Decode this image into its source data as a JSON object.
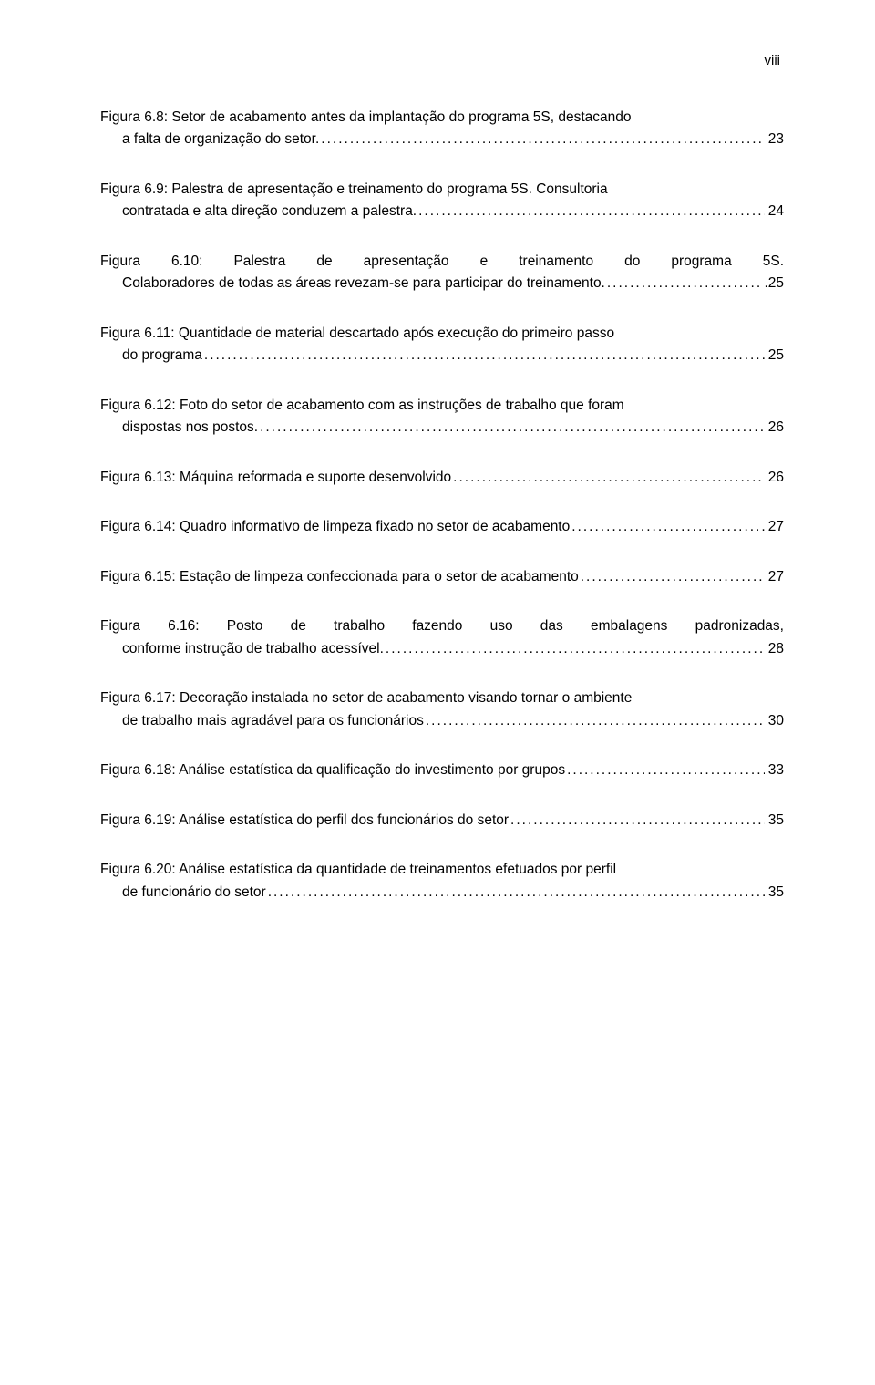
{
  "page_number_label": "viii",
  "entries": [
    {
      "lines": [
        "Figura 6.8: Setor de acabamento antes da implantação do programa 5S, destacando"
      ],
      "tail_lead": "a falta de organização do setor.",
      "page": "23",
      "indent_tail": true
    },
    {
      "lines": [
        "Figura 6.9: Palestra de apresentação e treinamento do programa 5S. Consultoria"
      ],
      "tail_lead": "contratada e alta direção conduzem a palestra.",
      "page": "24",
      "indent_tail": true
    },
    {
      "lines": [
        "Figura 6.10: Palestra de apresentação e treinamento do programa 5S."
      ],
      "tail_lead": "Colaboradores de todas as áreas revezam-se para participar do treinamento.",
      "page": ".25",
      "indent_tail": true,
      "first_full_indent": false,
      "first_justify": true,
      "second_line_full": true
    },
    {
      "lines": [
        "Figura 6.11: Quantidade de material descartado após execução do primeiro passo"
      ],
      "tail_lead": "do programa",
      "page": "25",
      "indent_tail": true
    },
    {
      "lines": [
        "Figura 6.12: Foto do setor de acabamento com as instruções de trabalho que foram"
      ],
      "tail_lead": "dispostas nos postos.",
      "page": "26",
      "indent_tail": true
    },
    {
      "lines": [],
      "tail_lead": "Figura 6.13: Máquina reformada e suporte desenvolvido",
      "page": "26",
      "indent_tail": false
    },
    {
      "lines": [],
      "tail_lead": "Figura 6.14: Quadro informativo de limpeza fixado no setor de acabamento",
      "page": "27",
      "indent_tail": false
    },
    {
      "lines": [],
      "tail_lead": "Figura 6.15: Estação de limpeza confeccionada para o setor de acabamento",
      "page": "27",
      "indent_tail": false
    },
    {
      "lines": [
        "Figura 6.16: Posto de trabalho fazendo uso das embalagens padronizadas,"
      ],
      "tail_lead": "conforme instrução de trabalho acessível.",
      "page": "28",
      "indent_tail": true,
      "first_justify": true
    },
    {
      "lines": [
        "Figura 6.17: Decoração instalada no setor de acabamento visando tornar o ambiente"
      ],
      "tail_lead": "de trabalho mais agradável para os funcionários",
      "page": "30",
      "indent_tail": true
    },
    {
      "lines": [],
      "tail_lead": "Figura 6.18: Análise estatística da qualificação do investimento por grupos",
      "page": "33",
      "indent_tail": false
    },
    {
      "lines": [],
      "tail_lead": "Figura 6.19: Análise estatística do perfil dos funcionários do setor",
      "page": "35",
      "indent_tail": false
    },
    {
      "lines": [
        "Figura 6.20: Análise estatística da quantidade de treinamentos efetuados por perfil"
      ],
      "tail_lead": "de funcionário do setor",
      "page": "35",
      "indent_tail": true
    }
  ],
  "dots_fill": "......................................................................................................................................................"
}
